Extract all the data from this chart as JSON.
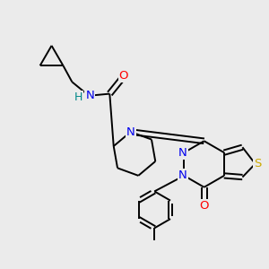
{
  "bg_color": "#ebebeb",
  "atom_colors": {
    "N": "#0000ee",
    "O": "#ff0000",
    "S": "#ccaa00",
    "H": "#008888",
    "C": "#000000"
  },
  "bond_lw": 1.4,
  "font_size": 9.5
}
